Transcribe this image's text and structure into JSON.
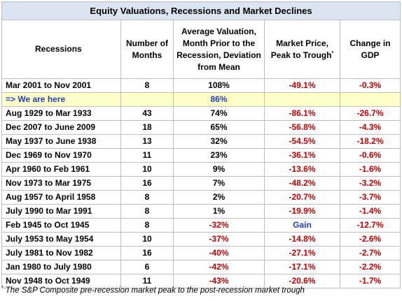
{
  "title": "Equity Valuations, Recessions and Market Declines",
  "headers": {
    "recessions": "Recessions",
    "months": "Number of Months",
    "valuation": "Average Valuation, Month Prior to the Recession, Deviation from Mean",
    "market": "Market Price, Peak to Trough",
    "market_marker": "*",
    "gdp": "Change in GDP"
  },
  "rows": [
    {
      "recession": "Mar 2001 to Nov 2001",
      "months": "8",
      "valuation": "108%",
      "market": "-49.1%",
      "gdp": "-0.3%"
    },
    {
      "recession": "=> We are here",
      "months": "",
      "valuation": "86%",
      "market": "",
      "gdp": ""
    },
    {
      "recession": "Aug 1929 to Mar 1933",
      "months": "43",
      "valuation": "74%",
      "market": "-86.1%",
      "gdp": "-26.7%"
    },
    {
      "recession": "Dec 2007 to June 2009",
      "months": "18",
      "valuation": "65%",
      "market": "-56.8%",
      "gdp": "-4.3%"
    },
    {
      "recession": "May 1937 to June 1938",
      "months": "13",
      "valuation": "32%",
      "market": "-54.5%",
      "gdp": "-18.2%"
    },
    {
      "recession": "Dec 1969 to Nov 1970",
      "months": "11",
      "valuation": "23%",
      "market": "-36.1%",
      "gdp": "-0.6%"
    },
    {
      "recession": "Apr 1960 to Feb 1961",
      "months": "10",
      "valuation": "9%",
      "market": "-13.6%",
      "gdp": "-1.6%"
    },
    {
      "recession": "Nov 1973 to Mar 1975",
      "months": "16",
      "valuation": "7%",
      "market": "-48.2%",
      "gdp": "-3.2%"
    },
    {
      "recession": "Aug 1957 to April 1958",
      "months": "8",
      "valuation": "2%",
      "market": "-20.7%",
      "gdp": "-3.7%"
    },
    {
      "recession": "July 1990 to Mar 1991",
      "months": "8",
      "valuation": "1%",
      "market": "-19.9%",
      "gdp": "-1.4%"
    },
    {
      "recession": "Feb 1945 to Oct 1945",
      "months": "8",
      "valuation": "-32%",
      "market": "Gain",
      "gdp": "-12.7%"
    },
    {
      "recession": "July 1953 to May 1954",
      "months": "10",
      "valuation": "-37%",
      "market": "-14.8%",
      "gdp": "-2.6%"
    },
    {
      "recession": "July 1981 to Nov 1982",
      "months": "16",
      "valuation": "-40%",
      "market": "-27.1%",
      "gdp": "-2.7%"
    },
    {
      "recession": "Jan 1980 to July 1980",
      "months": "6",
      "valuation": "-42%",
      "market": "-17.1%",
      "gdp": "-2.2%"
    },
    {
      "recession": "Nov 1948 to Oct 1949",
      "months": "11",
      "valuation": "-43%",
      "market": "-20.6%",
      "gdp": "-1.7%"
    }
  ],
  "footnote": {
    "marker": "*",
    "text": "The S&P Composite pre-recession market peak to the post-recession market trough"
  },
  "colors": {
    "title_bg": "#dbe5f1",
    "highlight_bg": "#ffffc8",
    "negative": "#c00000",
    "highlight_text": "#1f3fbf",
    "gain": "#1f3fbf"
  }
}
